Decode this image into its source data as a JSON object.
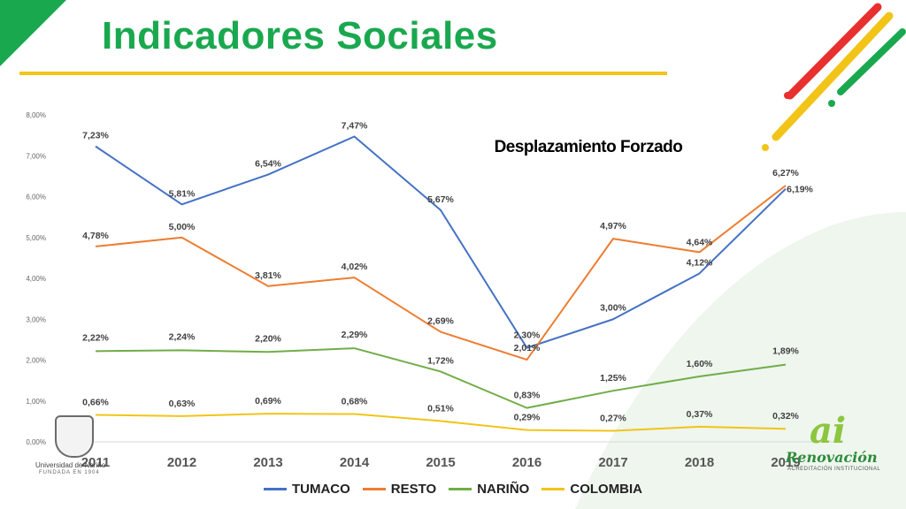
{
  "slide": {
    "title": "Indicadores Sociales",
    "colors": {
      "title": "#1aa84f",
      "rule": "#f2c418",
      "corner": "#1aa84f"
    }
  },
  "logos": {
    "left_text": "Universidad de Nariño",
    "left_subtext": "FUNDADA EN 1904",
    "right_mark": "ai",
    "right_text": "Renovación",
    "right_subtext": "ACREDITACIÓN INSTITUCIONAL"
  },
  "chart_data": {
    "type": "line",
    "title": "Desplazamiento Forzado",
    "xlabel": "",
    "ylabel": "",
    "categories": [
      "2011",
      "2012",
      "2013",
      "2014",
      "2015",
      "2016",
      "2017",
      "2018",
      "2019"
    ],
    "ylim": [
      0,
      8
    ],
    "yticks": [
      "0,00%",
      "1,00%",
      "2,00%",
      "3,00%",
      "4,00%",
      "5,00%",
      "6,00%",
      "7,00%",
      "8,00%"
    ],
    "grid": false,
    "legend_position": "bottom",
    "series": [
      {
        "name": "TUMACO",
        "color": "#4472c4",
        "values": [
          7.23,
          5.81,
          6.54,
          7.47,
          5.67,
          2.3,
          3.0,
          4.12,
          6.19
        ],
        "labels": [
          "7,23%",
          "5,81%",
          "6,54%",
          "7,47%",
          "5,67%",
          "2,30%",
          "3,00%",
          "4,12%",
          "6,19%"
        ]
      },
      {
        "name": "RESTO",
        "color": "#ed7d31",
        "values": [
          4.78,
          5.0,
          3.81,
          4.02,
          2.69,
          2.01,
          4.97,
          4.64,
          6.27
        ],
        "labels": [
          "4,78%",
          "5,00%",
          "3,81%",
          "4,02%",
          "2,69%",
          "2,01%",
          "4,97%",
          "4,64%",
          "6,27%"
        ]
      },
      {
        "name": "NARIÑO",
        "color": "#70ad47",
        "values": [
          2.22,
          2.24,
          2.2,
          2.29,
          1.72,
          0.83,
          1.25,
          1.6,
          1.89
        ],
        "labels": [
          "2,22%",
          "2,24%",
          "2,20%",
          "2,29%",
          "1,72%",
          "0,83%",
          "1,25%",
          "1,60%",
          "1,89%"
        ]
      },
      {
        "name": "COLOMBIA",
        "color": "#f2c418",
        "values": [
          0.66,
          0.63,
          0.69,
          0.68,
          0.51,
          0.29,
          0.27,
          0.37,
          0.32
        ],
        "labels": [
          "0,66%",
          "0,63%",
          "0,69%",
          "0,68%",
          "0,51%",
          "0,29%",
          "0,27%",
          "0,37%",
          "0,32%"
        ]
      }
    ]
  }
}
